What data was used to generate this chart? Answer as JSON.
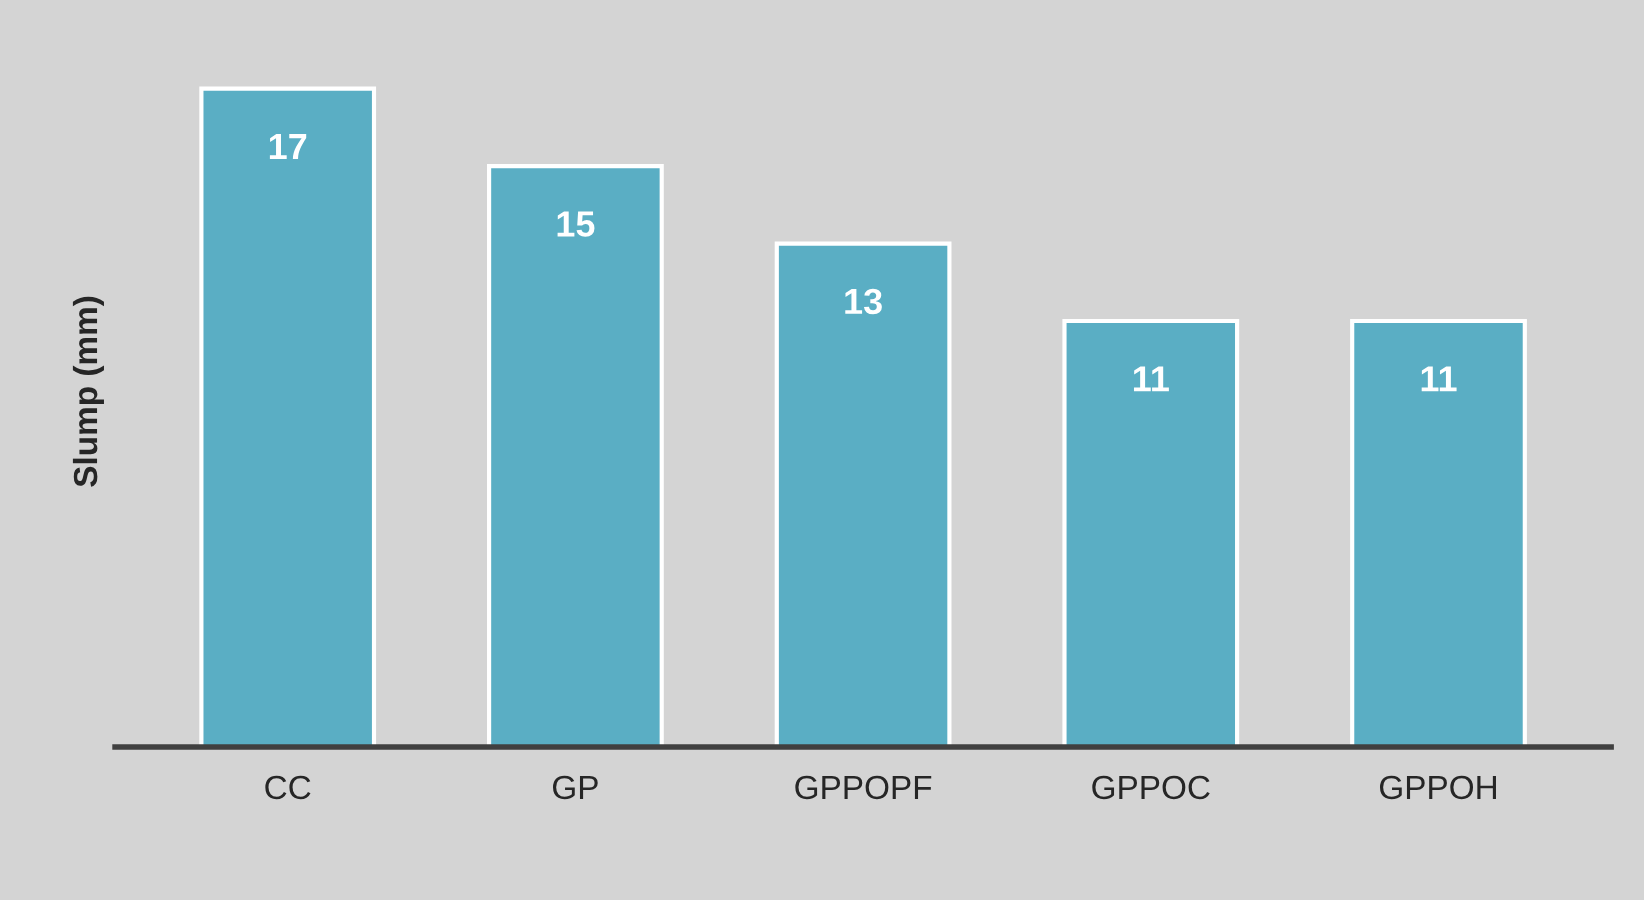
{
  "chart_data": {
    "type": "bar",
    "ylabel": "Slump (mm)",
    "categories": [
      "CC",
      "GP",
      "GPPOPF",
      "GPPOC",
      "GPPOH"
    ],
    "values": [
      17,
      15,
      13,
      11,
      11
    ],
    "color": "#5aaec4",
    "data_labels": true,
    "grid": false,
    "legend": false,
    "tick_labels": "x"
  }
}
